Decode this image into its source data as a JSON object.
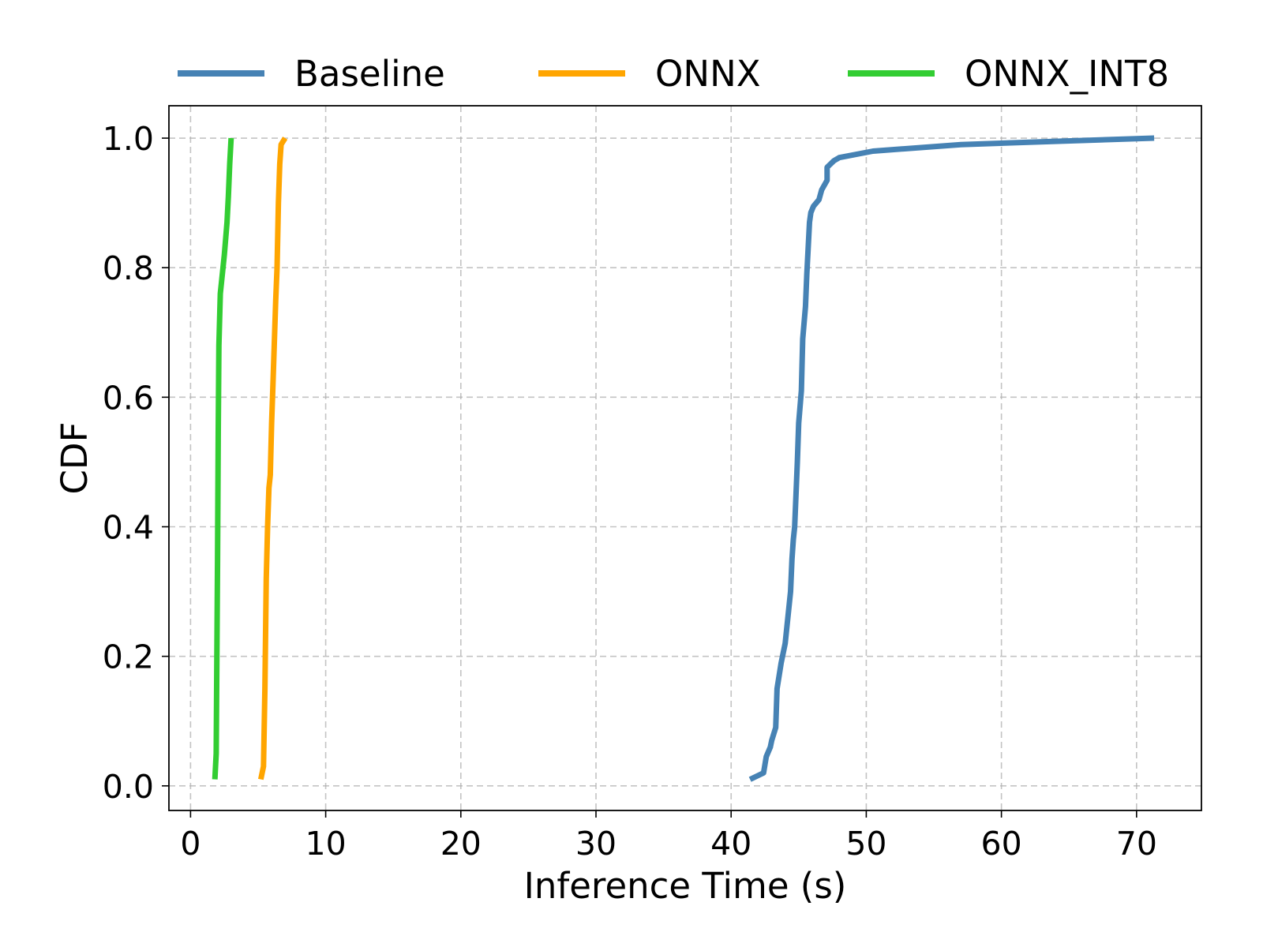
{
  "chart_data": {
    "type": "line",
    "xlabel": "Inference Time (s)",
    "ylabel": "CDF",
    "xlim": [
      -1.6,
      74.8
    ],
    "ylim": [
      -0.038,
      1.05
    ],
    "xticks": [
      0,
      10,
      20,
      30,
      40,
      50,
      60,
      70
    ],
    "xtick_labels": [
      "0",
      "10",
      "20",
      "30",
      "40",
      "50",
      "60",
      "70"
    ],
    "yticks": [
      0.0,
      0.2,
      0.4,
      0.6,
      0.8,
      1.0
    ],
    "ytick_labels": [
      "0.0",
      "0.2",
      "0.4",
      "0.6",
      "0.8",
      "1.0"
    ],
    "grid": true,
    "legend_position": "top",
    "series": [
      {
        "name": "Baseline",
        "color": "#4682b4",
        "x": [
          41.4,
          42.4,
          42.6,
          42.9,
          43.0,
          43.3,
          43.4,
          43.7,
          44.0,
          44.2,
          44.4,
          44.5,
          44.6,
          44.7,
          44.8,
          44.9,
          45.0,
          45.2,
          45.3,
          45.5,
          45.6,
          45.7,
          45.8,
          45.9,
          46.1,
          46.5,
          46.7,
          47.1,
          47.1,
          47.6,
          48.0,
          50.5,
          57.0,
          64.0,
          71.3
        ],
        "y": [
          0.01,
          0.02,
          0.045,
          0.06,
          0.07,
          0.09,
          0.15,
          0.19,
          0.22,
          0.26,
          0.3,
          0.35,
          0.38,
          0.4,
          0.45,
          0.5,
          0.56,
          0.61,
          0.69,
          0.74,
          0.79,
          0.83,
          0.87,
          0.885,
          0.895,
          0.905,
          0.92,
          0.935,
          0.955,
          0.965,
          0.97,
          0.98,
          0.99,
          0.995,
          1.0
        ]
      },
      {
        "name": "ONNX",
        "color": "#ffa500",
        "x": [
          5.2,
          5.4,
          5.5,
          5.6,
          5.7,
          5.8,
          5.9,
          6.0,
          6.1,
          6.3,
          6.4,
          6.5,
          6.6,
          6.7,
          7.0
        ],
        "y": [
          0.01,
          0.03,
          0.15,
          0.32,
          0.4,
          0.46,
          0.48,
          0.56,
          0.62,
          0.75,
          0.8,
          0.9,
          0.96,
          0.99,
          1.0
        ]
      },
      {
        "name": "ONNX_INT8",
        "color": "#32cd32",
        "x": [
          1.8,
          1.9,
          2.0,
          2.05,
          2.1,
          2.2,
          2.5,
          2.7,
          2.8,
          2.9,
          3.0
        ],
        "y": [
          0.01,
          0.05,
          0.35,
          0.55,
          0.68,
          0.76,
          0.82,
          0.87,
          0.91,
          0.96,
          1.0
        ]
      }
    ]
  }
}
